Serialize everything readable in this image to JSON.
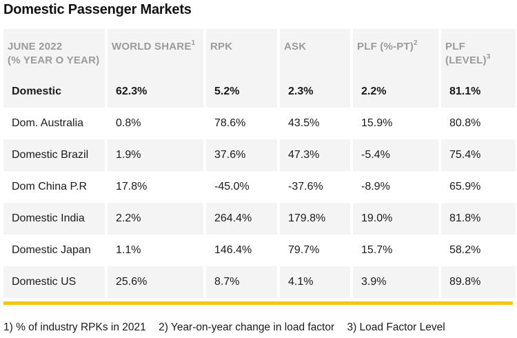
{
  "title": "Domestic Passenger Markets",
  "table": {
    "headers": [
      {
        "line1": "JUNE 2022",
        "line2": "(% YEAR O YEAR)",
        "sup": ""
      },
      {
        "line1": "WORLD SHARE",
        "line2": "",
        "sup": "1"
      },
      {
        "line1": "RPK",
        "line2": "",
        "sup": ""
      },
      {
        "line1": "ASK",
        "line2": "",
        "sup": ""
      },
      {
        "line1": "PLF (%-PT)",
        "line2": "",
        "sup": "2"
      },
      {
        "line1": "PLF (LEVEL)",
        "line2": "",
        "sup": "3"
      }
    ],
    "rows": [
      [
        "Domestic",
        "62.3%",
        "5.2%",
        "2.3%",
        "2.2%",
        "81.1%"
      ],
      [
        "Dom. Australia",
        "0.8%",
        "78.6%",
        "43.5%",
        "15.9%",
        "80.8%"
      ],
      [
        "Domestic Brazil",
        "1.9%",
        "37.6%",
        "47.3%",
        "-5.4%",
        "75.4%"
      ],
      [
        "Dom China P.R",
        "17.8%",
        "-45.0%",
        "-37.6%",
        "-8.9%",
        "65.9%"
      ],
      [
        "Domestic India",
        "2.2%",
        "264.4%",
        "179.8%",
        "19.0%",
        "81.8%"
      ],
      [
        "Domestic Japan",
        "1.1%",
        "146.4%",
        "79.7%",
        "15.7%",
        "58.2%"
      ],
      [
        "Domestic US",
        "25.6%",
        "8.7%",
        "4.1%",
        "3.9%",
        "89.8%"
      ]
    ]
  },
  "footnotes": [
    "1) % of industry RPKs in 2021",
    "2) Year-on-year change in load factor",
    "3) Load Factor Level"
  ],
  "colors": {
    "accent_rule": "#f5c515",
    "shaded_row": "#f4f4f4",
    "header_text": "#9a9a9a"
  }
}
